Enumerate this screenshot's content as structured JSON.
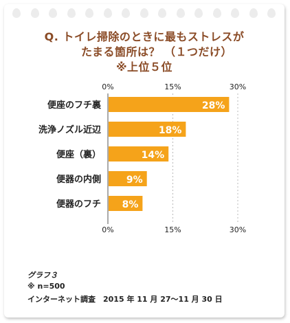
{
  "title_lines": [
    "Q. トイレ掃除のときに最もストレスが",
    "たまる箇所は？ （１つだけ）",
    "※上位５位"
  ],
  "chart_data": {
    "type": "bar",
    "orientation": "horizontal",
    "categories": [
      "便座のフチ裏",
      "洗浄ノズル近辺",
      "便座（裏）",
      "便器の内側",
      "便器のフチ"
    ],
    "values": [
      28,
      18,
      14,
      9,
      8
    ],
    "value_labels": [
      "28%",
      "18%",
      "14%",
      "9%",
      "8%"
    ],
    "xlim": [
      0,
      30
    ],
    "ticks": [
      0,
      15,
      30
    ],
    "tick_labels": [
      "0%",
      "15%",
      "30%"
    ],
    "grid": true,
    "bar_color": "#f5a31a"
  },
  "footer": {
    "graph_label": "グラフ３",
    "sample": "※ n=500",
    "survey": "インターネット調査　2015 年 11 月 27～11 月 30 日"
  }
}
